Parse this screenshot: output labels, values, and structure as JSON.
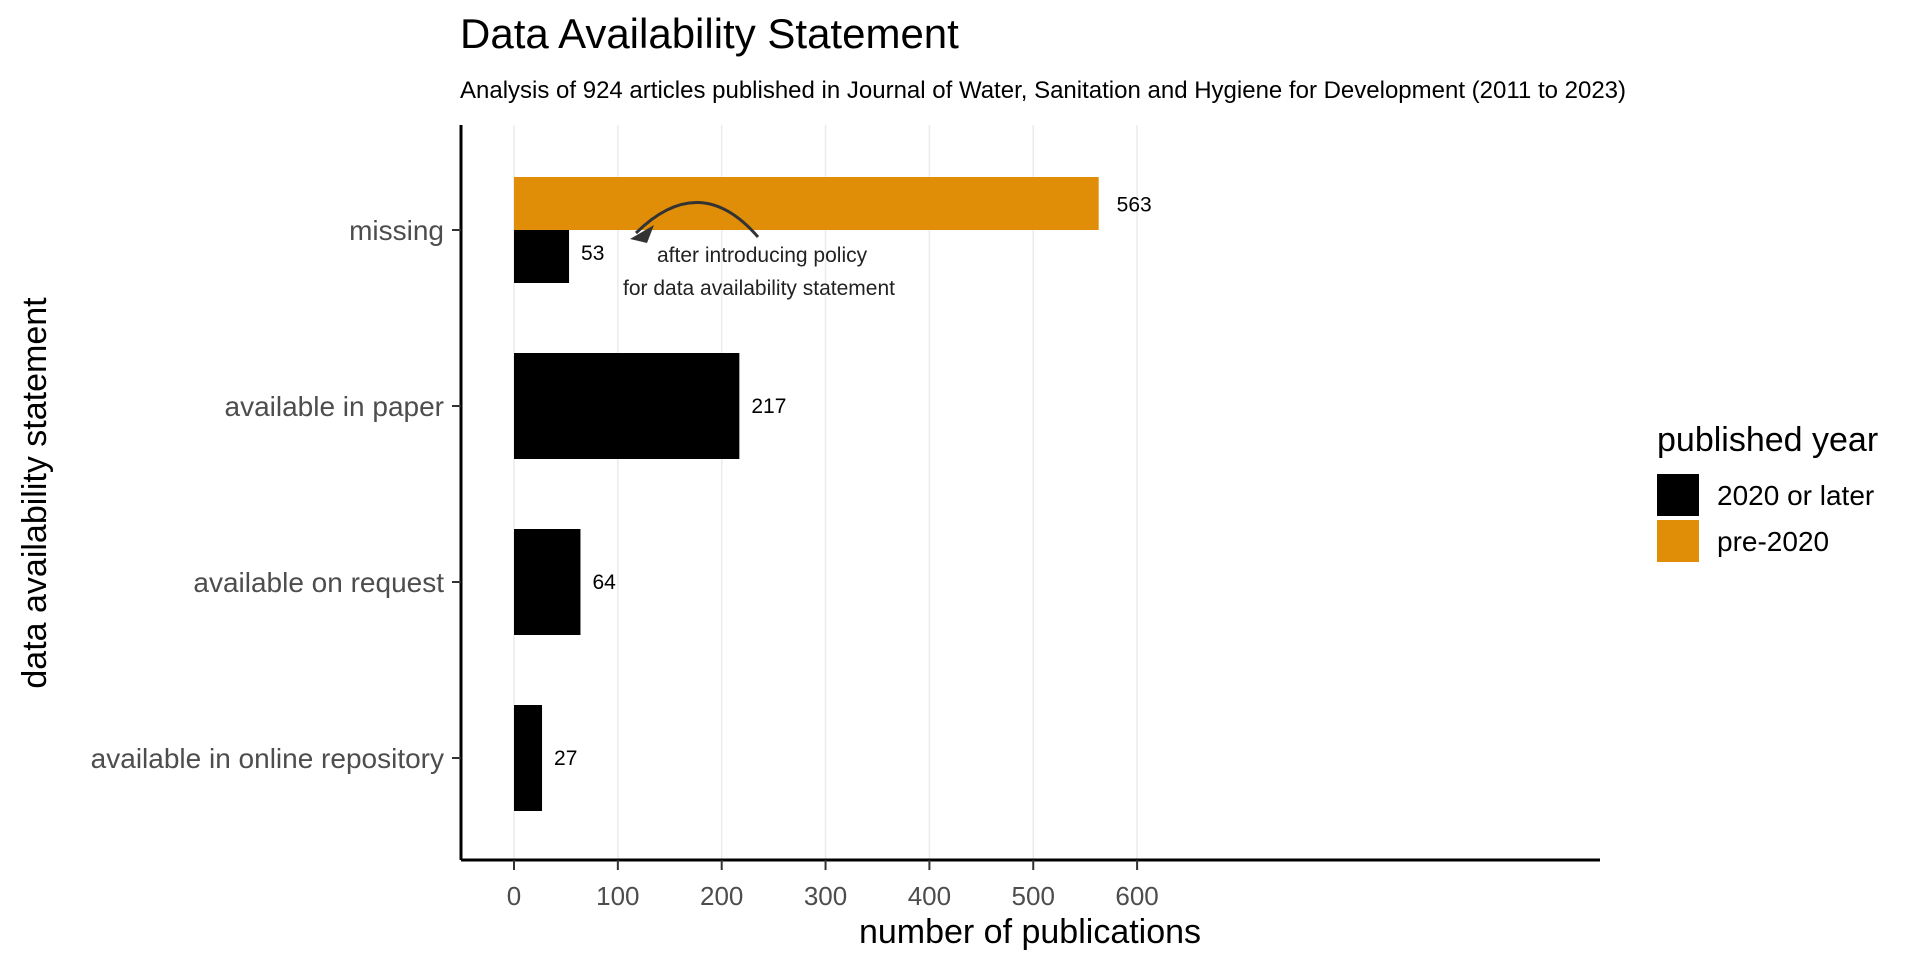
{
  "chart_data": {
    "type": "bar",
    "title": "Data Availability Statement",
    "subtitle": "Analysis of 924 articles published in Journal of Water, Sanitation and Hygiene for Development (2011 to 2023)",
    "xlabel": "number of publications",
    "ylabel": "data availability statement",
    "xlim": [
      -30,
      630
    ],
    "x_ticks": [
      0,
      100,
      200,
      300,
      400,
      500,
      600
    ],
    "grid": "vertical major gridlines",
    "orientation": "horizontal",
    "categories": [
      "missing",
      "available in paper",
      "available on request",
      "available in online repository"
    ],
    "series": [
      {
        "name": "2020 or later",
        "color": "#000000",
        "values": [
          53,
          217,
          64,
          27
        ]
      },
      {
        "name": "pre-2020",
        "color": "#E08D08",
        "values": [
          563,
          null,
          null,
          null
        ]
      }
    ],
    "legend": {
      "title": "published year",
      "placement": "right",
      "items": [
        "2020 or later",
        "pre-2020"
      ]
    },
    "annotation": {
      "line1": "after introducing policy",
      "line2": "for data availability statement"
    }
  }
}
